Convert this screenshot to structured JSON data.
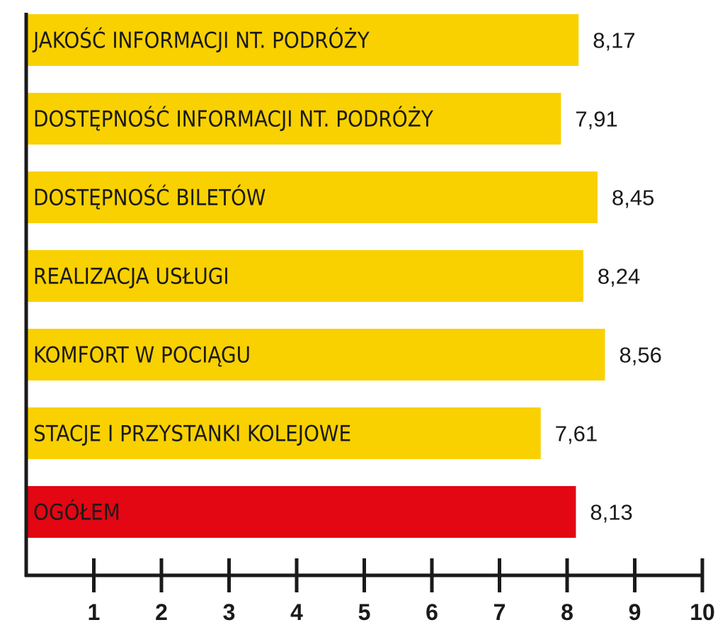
{
  "chart_data": {
    "type": "bar",
    "orientation": "horizontal",
    "categories": [
      "JAKOŚĆ INFORMACJI NT. PODRÓŻY",
      "DOSTĘPNOŚĆ INFORMACJI NT. PODRÓŻY",
      "DOSTĘPNOŚĆ BILETÓW",
      "REALIZACJA USŁUGI",
      "KOMFORT W POCIĄGU",
      "STACJE I PRZYSTANKI KOLEJOWE",
      "OGÓŁEM"
    ],
    "values": [
      8.17,
      7.91,
      8.45,
      8.24,
      8.56,
      7.61,
      8.13
    ],
    "value_labels": [
      "8,17",
      "7,91",
      "8,45",
      "8,24",
      "8,56",
      "7,61",
      "8,13"
    ],
    "bar_colors": [
      "#f9d100",
      "#f9d100",
      "#f9d100",
      "#f9d100",
      "#f9d100",
      "#f9d100",
      "#e30613"
    ],
    "xlim": [
      0,
      10
    ],
    "xticks": [
      "1",
      "2",
      "3",
      "4",
      "5",
      "6",
      "7",
      "8",
      "9",
      "10"
    ],
    "title": "",
    "xlabel": "",
    "ylabel": "",
    "grid": false,
    "legend": "none"
  },
  "colors": {
    "highlight": "#f9d100",
    "total": "#e30613",
    "axis": "#1a1a1a"
  }
}
